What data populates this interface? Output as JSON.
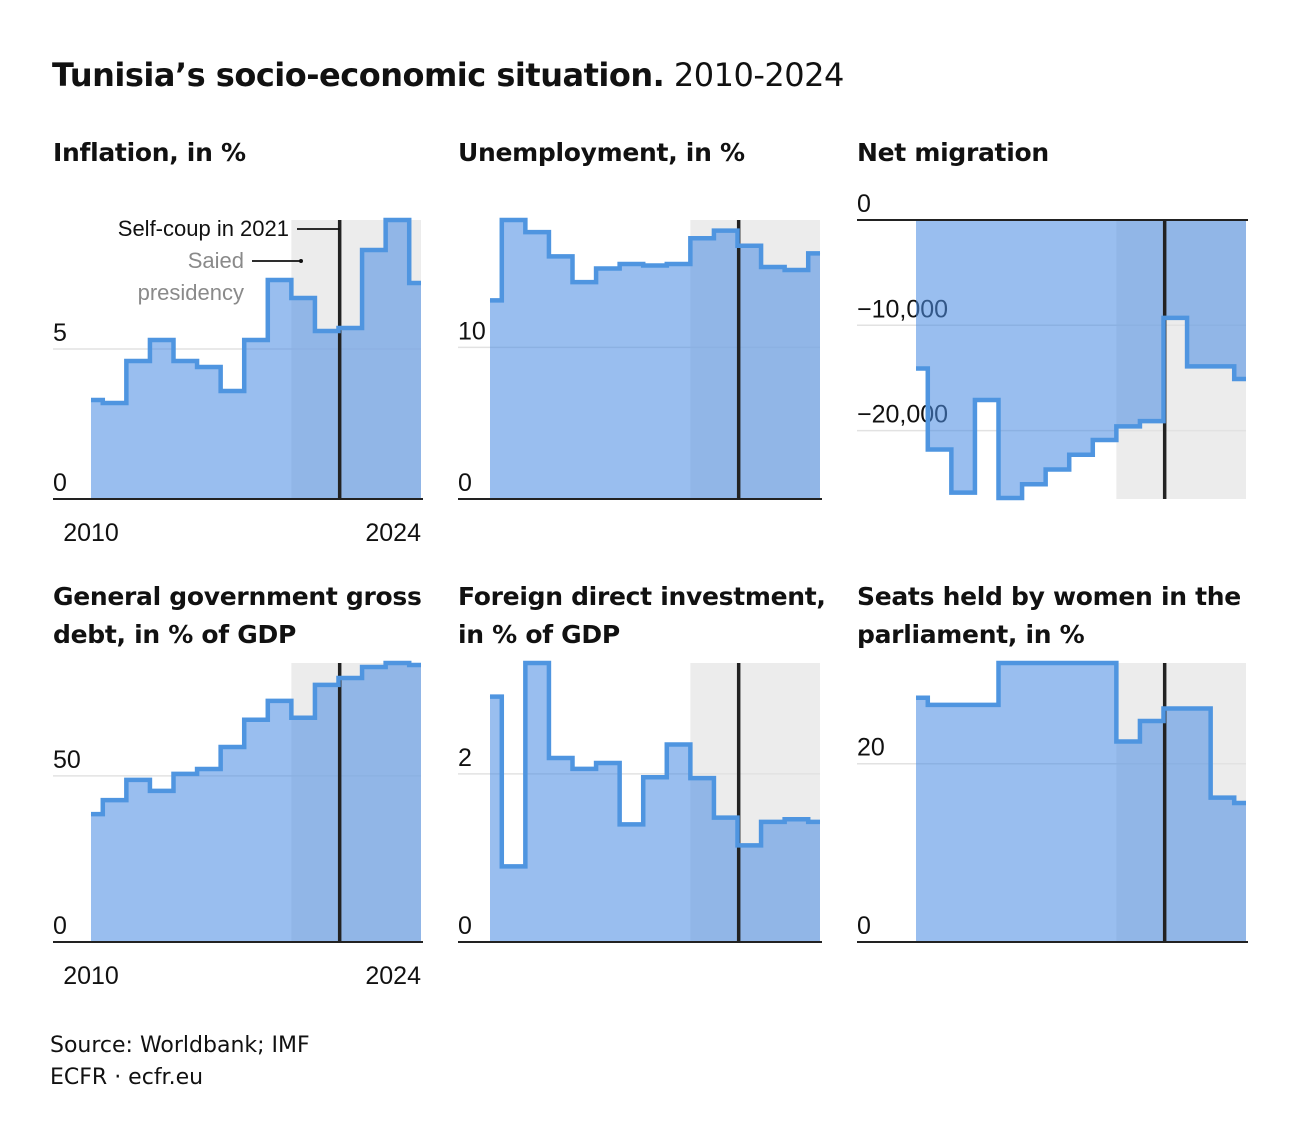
{
  "title": {
    "bold": "Tunisia’s socio-economic situation.",
    "range": "2010-2024"
  },
  "colors": {
    "line": "#4f95e0",
    "fill": "rgba(76,141,226,0.57)",
    "shade": "#ececec",
    "axis": "#222222",
    "grid": "#e2e2e2",
    "annotation_gray": "#8a8a8a"
  },
  "annotations": {
    "coup": "Self-coup in 2021",
    "presidency_1": "Saied",
    "presidency_2": "presidency",
    "presidency_start_year": 2018.5,
    "coup_year": 2020.55
  },
  "chart_data": [
    {
      "type": "line",
      "step": true,
      "title": "Inflation, in %",
      "x": [
        2010,
        2011,
        2012,
        2013,
        2014,
        2015,
        2016,
        2017,
        2018,
        2019,
        2020,
        2021,
        2022,
        2023,
        2024
      ],
      "values": [
        3.3,
        3.2,
        4.6,
        5.3,
        4.6,
        4.4,
        3.6,
        5.3,
        7.3,
        6.7,
        5.6,
        5.7,
        8.3,
        9.3,
        7.2
      ],
      "ylim": [
        0,
        9.3
      ],
      "yticks": [
        0,
        5
      ],
      "ytick_labels": [
        "0",
        "5"
      ],
      "xtick_labels": [
        "2010",
        "2024"
      ]
    },
    {
      "type": "line",
      "step": true,
      "title": "Unemployment, in %",
      "x": [
        2010,
        2011,
        2012,
        2013,
        2014,
        2015,
        2016,
        2017,
        2018,
        2019,
        2020,
        2021,
        2022,
        2023,
        2024
      ],
      "values": [
        13.1,
        18.4,
        17.6,
        16.0,
        14.3,
        15.2,
        15.5,
        15.4,
        15.5,
        17.2,
        17.7,
        16.7,
        15.3,
        15.1,
        16.2
      ],
      "ylim": [
        0,
        18.4
      ],
      "yticks": [
        0,
        10
      ],
      "ytick_labels": [
        "0",
        "10"
      ],
      "xtick_labels": []
    },
    {
      "type": "line",
      "step": true,
      "title": "Net migration",
      "x": [
        2010,
        2011,
        2012,
        2013,
        2014,
        2015,
        2016,
        2017,
        2018,
        2019,
        2020,
        2021,
        2022,
        2023,
        2024
      ],
      "values": [
        -14100,
        -21800,
        -25900,
        -17100,
        -26400,
        -25100,
        -23700,
        -22300,
        -20900,
        -19600,
        -19100,
        -9300,
        -13900,
        -13900,
        -15100
      ],
      "ylim": [
        -26500,
        0
      ],
      "yticks": [
        0,
        -10000,
        -20000
      ],
      "ytick_labels": [
        "0",
        "−10,000",
        "−20,000"
      ],
      "xtick_labels": []
    },
    {
      "type": "line",
      "step": true,
      "title": "General government gross debt, in % of GDP",
      "x": [
        2010,
        2011,
        2012,
        2013,
        2014,
        2015,
        2016,
        2017,
        2018,
        2019,
        2020,
        2021,
        2022,
        2023,
        2024
      ],
      "values": [
        38.5,
        42.7,
        48.8,
        45.5,
        50.6,
        52.1,
        58.7,
        66.9,
        72.6,
        67.5,
        77.4,
        79.5,
        82.8,
        84.0,
        83.4
      ],
      "ylim": [
        0,
        84
      ],
      "yticks": [
        0,
        50
      ],
      "ytick_labels": [
        "0",
        "50"
      ],
      "xtick_labels": [
        "2010",
        "2024"
      ]
    },
    {
      "type": "line",
      "step": true,
      "title": "Foreign direct investment, in % of GDP",
      "x": [
        2010,
        2011,
        2012,
        2013,
        2014,
        2015,
        2016,
        2017,
        2018,
        2019,
        2020,
        2021,
        2022,
        2023,
        2024
      ],
      "values": [
        2.92,
        0.9,
        3.32,
        2.19,
        2.06,
        2.13,
        1.4,
        1.96,
        2.35,
        1.95,
        1.48,
        1.15,
        1.43,
        1.46,
        1.43
      ],
      "ylim": [
        0,
        3.32
      ],
      "yticks": [
        0,
        2
      ],
      "ytick_labels": [
        "0",
        "2"
      ],
      "xtick_labels": []
    },
    {
      "type": "line",
      "step": true,
      "title": "Seats held by women in the parliament, in %",
      "x": [
        2010,
        2011,
        2012,
        2013,
        2014,
        2015,
        2016,
        2017,
        2018,
        2019,
        2020,
        2021,
        2022,
        2023,
        2024
      ],
      "values": [
        27.4,
        26.6,
        26.6,
        26.6,
        31.3,
        31.3,
        31.3,
        31.3,
        31.3,
        22.5,
        24.8,
        26.2,
        26.2,
        16.2,
        15.6
      ],
      "ylim": [
        0,
        31.3
      ],
      "yticks": [
        0,
        20
      ],
      "ytick_labels": [
        "0",
        "20"
      ],
      "xtick_labels": []
    }
  ],
  "footer": {
    "source": "Source: Worldbank; IMF",
    "credit": "ECFR · ecfr.eu"
  }
}
